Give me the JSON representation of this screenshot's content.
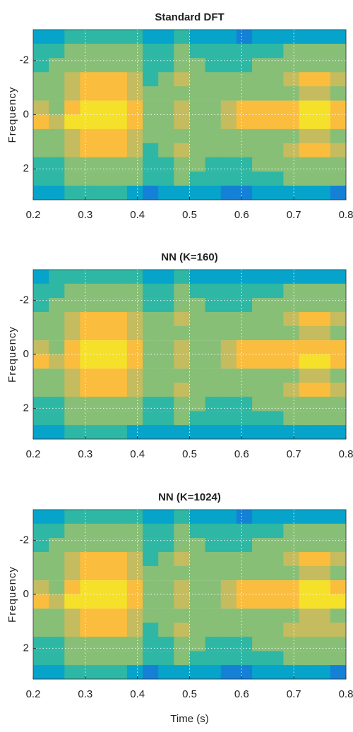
{
  "chart_data": [
    {
      "type": "heatmap",
      "title": "Standard DFT",
      "ylabel": "Frequency",
      "x": [
        0.215,
        0.245,
        0.275,
        0.305,
        0.335,
        0.365,
        0.395,
        0.425,
        0.455,
        0.485,
        0.515,
        0.545,
        0.575,
        0.605,
        0.635,
        0.665,
        0.695,
        0.725,
        0.755,
        0.785
      ],
      "y": [
        -2.88,
        -2.36,
        -1.83,
        -1.31,
        -0.79,
        -0.26,
        0.26,
        0.79,
        1.31,
        1.83,
        2.36,
        2.88
      ],
      "z": [
        [
          3,
          3,
          4,
          4,
          4,
          4,
          4,
          3,
          3,
          4,
          3,
          3,
          3,
          2,
          3,
          3,
          3,
          3,
          3,
          3
        ],
        [
          4,
          4,
          5,
          5,
          5,
          5,
          5,
          4,
          4,
          5,
          4,
          4,
          4,
          4,
          4,
          4,
          5,
          5,
          5,
          5
        ],
        [
          4,
          5,
          5,
          6,
          6,
          6,
          5,
          4,
          4,
          6,
          5,
          4,
          4,
          4,
          5,
          5,
          6,
          6,
          6,
          6
        ],
        [
          5,
          5,
          7,
          8,
          8,
          8,
          7,
          4,
          5,
          7,
          5,
          5,
          5,
          5,
          5,
          5,
          7,
          8,
          8,
          7
        ],
        [
          5,
          5,
          7,
          8,
          8,
          8,
          7,
          5,
          5,
          6,
          5,
          5,
          5,
          5,
          5,
          5,
          6,
          7,
          7,
          6
        ],
        [
          7,
          6,
          8,
          9,
          9,
          9,
          8,
          6,
          6,
          7,
          6,
          6,
          7,
          8,
          8,
          8,
          8,
          9,
          9,
          8
        ],
        [
          8,
          7,
          9,
          9,
          9,
          9,
          8,
          6,
          6,
          7,
          6,
          6,
          7,
          8,
          8,
          8,
          8,
          9,
          9,
          8
        ],
        [
          5,
          5,
          7,
          8,
          8,
          8,
          7,
          5,
          5,
          6,
          5,
          5,
          5,
          5,
          5,
          5,
          6,
          7,
          7,
          6
        ],
        [
          5,
          5,
          7,
          8,
          8,
          8,
          7,
          4,
          5,
          7,
          5,
          5,
          5,
          5,
          5,
          5,
          7,
          8,
          8,
          7
        ],
        [
          4,
          4,
          5,
          6,
          6,
          6,
          5,
          4,
          4,
          6,
          5,
          4,
          4,
          4,
          5,
          5,
          6,
          6,
          6,
          5
        ],
        [
          4,
          4,
          5,
          5,
          5,
          5,
          5,
          4,
          4,
          5,
          4,
          4,
          4,
          4,
          4,
          4,
          5,
          5,
          5,
          5
        ],
        [
          3,
          3,
          4,
          4,
          4,
          4,
          3,
          2,
          3,
          3,
          3,
          3,
          2,
          2,
          3,
          3,
          3,
          3,
          3,
          2
        ]
      ],
      "xlim": [
        0.2,
        0.8
      ],
      "ylim": [
        -3.14,
        3.14
      ],
      "yreverse": true,
      "xticks": [
        0.2,
        0.3,
        0.4,
        0.5,
        0.6,
        0.7,
        0.8
      ],
      "yticks": [
        -2,
        0,
        2
      ],
      "grid": true,
      "clim": [
        0,
        10
      ],
      "colormap": [
        "#352a87",
        "#0f5cdd",
        "#1481d6",
        "#06a4ca",
        "#2eb7a4",
        "#87bf77",
        "#c4bc5e",
        "#fbbd3d",
        "#f5e02a",
        "#f9fb0e"
      ]
    },
    {
      "type": "heatmap",
      "title": "NN (K=160)",
      "ylabel": "Frequency",
      "x": [
        0.215,
        0.245,
        0.275,
        0.305,
        0.335,
        0.365,
        0.395,
        0.425,
        0.455,
        0.485,
        0.515,
        0.545,
        0.575,
        0.605,
        0.635,
        0.665,
        0.695,
        0.725,
        0.755,
        0.785
      ],
      "y": [
        -2.88,
        -2.36,
        -1.83,
        -1.31,
        -0.79,
        -0.26,
        0.26,
        0.79,
        1.31,
        1.83,
        2.36,
        2.88
      ],
      "z": [
        [
          3,
          4,
          4,
          4,
          4,
          4,
          4,
          3,
          3,
          4,
          3,
          3,
          3,
          3,
          3,
          3,
          3,
          3,
          3,
          3
        ],
        [
          4,
          4,
          5,
          5,
          5,
          5,
          5,
          4,
          4,
          5,
          4,
          4,
          4,
          4,
          4,
          4,
          5,
          5,
          5,
          5
        ],
        [
          4,
          5,
          6,
          6,
          6,
          6,
          5,
          4,
          4,
          6,
          5,
          4,
          4,
          4,
          5,
          5,
          6,
          6,
          6,
          6
        ],
        [
          5,
          5,
          7,
          8,
          8,
          8,
          7,
          5,
          5,
          7,
          5,
          5,
          5,
          5,
          5,
          5,
          7,
          8,
          8,
          7
        ],
        [
          5,
          5,
          7,
          8,
          8,
          8,
          7,
          5,
          5,
          6,
          5,
          5,
          5,
          5,
          5,
          5,
          6,
          7,
          7,
          6
        ],
        [
          7,
          6,
          8,
          9,
          9,
          9,
          8,
          6,
          6,
          7,
          6,
          6,
          7,
          8,
          8,
          8,
          8,
          8,
          8,
          8
        ],
        [
          8,
          7,
          8,
          9,
          9,
          9,
          8,
          6,
          6,
          7,
          6,
          6,
          7,
          8,
          8,
          8,
          8,
          9,
          9,
          8
        ],
        [
          5,
          5,
          7,
          8,
          8,
          8,
          7,
          5,
          5,
          6,
          5,
          5,
          5,
          5,
          5,
          5,
          6,
          7,
          7,
          6
        ],
        [
          5,
          5,
          7,
          8,
          8,
          8,
          7,
          5,
          5,
          7,
          5,
          5,
          5,
          5,
          5,
          5,
          7,
          8,
          8,
          7
        ],
        [
          4,
          4,
          5,
          6,
          6,
          6,
          5,
          4,
          4,
          6,
          5,
          4,
          4,
          4,
          5,
          5,
          6,
          6,
          6,
          5
        ],
        [
          4,
          4,
          5,
          5,
          5,
          5,
          5,
          4,
          4,
          5,
          4,
          4,
          4,
          4,
          4,
          4,
          5,
          5,
          5,
          5
        ],
        [
          3,
          3,
          4,
          4,
          4,
          4,
          3,
          3,
          3,
          3,
          3,
          3,
          3,
          3,
          3,
          3,
          3,
          3,
          3,
          3
        ]
      ],
      "xlim": [
        0.2,
        0.8
      ],
      "ylim": [
        -3.14,
        3.14
      ],
      "yreverse": true,
      "xticks": [
        0.2,
        0.3,
        0.4,
        0.5,
        0.6,
        0.7,
        0.8
      ],
      "yticks": [
        -2,
        0,
        2
      ],
      "grid": true,
      "clim": [
        0,
        10
      ],
      "colormap": [
        "#352a87",
        "#0f5cdd",
        "#1481d6",
        "#06a4ca",
        "#2eb7a4",
        "#87bf77",
        "#c4bc5e",
        "#fbbd3d",
        "#f5e02a",
        "#f9fb0e"
      ]
    },
    {
      "type": "heatmap",
      "title": "NN (K=1024)",
      "ylabel": "Frequency",
      "xlabel": "Time (s)",
      "x": [
        0.215,
        0.245,
        0.275,
        0.305,
        0.335,
        0.365,
        0.395,
        0.425,
        0.455,
        0.485,
        0.515,
        0.545,
        0.575,
        0.605,
        0.635,
        0.665,
        0.695,
        0.725,
        0.755,
        0.785
      ],
      "y": [
        -2.88,
        -2.36,
        -1.83,
        -1.31,
        -0.79,
        -0.26,
        0.26,
        0.79,
        1.31,
        1.83,
        2.36,
        2.88
      ],
      "z": [
        [
          3,
          3,
          4,
          4,
          4,
          4,
          4,
          3,
          3,
          4,
          3,
          3,
          3,
          2,
          3,
          3,
          3,
          3,
          3,
          3
        ],
        [
          4,
          4,
          5,
          5,
          5,
          5,
          5,
          4,
          4,
          5,
          4,
          4,
          4,
          4,
          4,
          4,
          5,
          5,
          5,
          5
        ],
        [
          4,
          5,
          5,
          6,
          6,
          6,
          5,
          4,
          4,
          6,
          5,
          4,
          4,
          4,
          5,
          5,
          6,
          6,
          6,
          6
        ],
        [
          5,
          5,
          7,
          8,
          8,
          8,
          7,
          4,
          5,
          7,
          5,
          5,
          5,
          5,
          5,
          5,
          7,
          8,
          8,
          7
        ],
        [
          5,
          5,
          7,
          8,
          8,
          8,
          7,
          5,
          5,
          6,
          5,
          5,
          5,
          5,
          5,
          5,
          6,
          7,
          7,
          6
        ],
        [
          7,
          6,
          8,
          9,
          9,
          9,
          8,
          6,
          6,
          7,
          6,
          6,
          7,
          8,
          8,
          8,
          8,
          9,
          9,
          8
        ],
        [
          8,
          7,
          9,
          9,
          9,
          9,
          8,
          6,
          6,
          7,
          6,
          6,
          7,
          8,
          8,
          8,
          8,
          9,
          9,
          9
        ],
        [
          5,
          5,
          7,
          8,
          8,
          8,
          7,
          5,
          5,
          6,
          5,
          5,
          5,
          5,
          5,
          5,
          6,
          7,
          7,
          6
        ],
        [
          5,
          5,
          7,
          8,
          8,
          8,
          7,
          4,
          5,
          7,
          5,
          5,
          5,
          5,
          5,
          5,
          7,
          7,
          7,
          7
        ],
        [
          4,
          4,
          5,
          6,
          6,
          6,
          5,
          4,
          4,
          6,
          5,
          4,
          4,
          4,
          5,
          5,
          6,
          6,
          6,
          5
        ],
        [
          4,
          4,
          5,
          5,
          5,
          5,
          5,
          4,
          4,
          5,
          4,
          4,
          4,
          4,
          4,
          4,
          5,
          5,
          5,
          5
        ],
        [
          3,
          3,
          4,
          4,
          4,
          4,
          3,
          2,
          3,
          3,
          3,
          3,
          2,
          2,
          3,
          3,
          3,
          3,
          3,
          2
        ]
      ],
      "xlim": [
        0.2,
        0.8
      ],
      "ylim": [
        -3.14,
        3.14
      ],
      "yreverse": true,
      "xticks": [
        0.2,
        0.3,
        0.4,
        0.5,
        0.6,
        0.7,
        0.8
      ],
      "yticks": [
        -2,
        0,
        2
      ],
      "grid": true,
      "clim": [
        0,
        10
      ],
      "colormap": [
        "#352a87",
        "#0f5cdd",
        "#1481d6",
        "#06a4ca",
        "#2eb7a4",
        "#87bf77",
        "#c4bc5e",
        "#fbbd3d",
        "#f5e02a",
        "#f9fb0e"
      ]
    }
  ]
}
